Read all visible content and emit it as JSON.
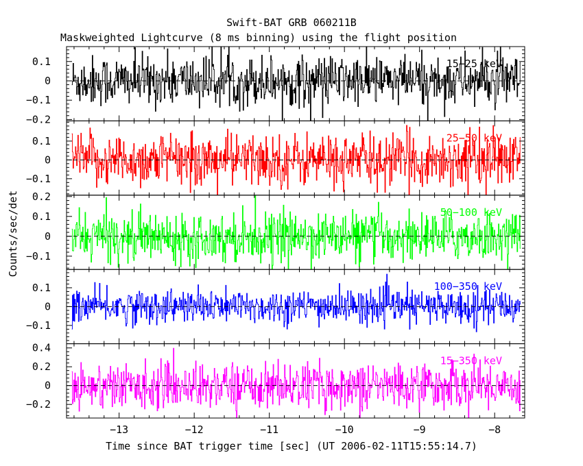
{
  "chart_data": {
    "type": "line",
    "title": "Swift-BAT GRB 060211B",
    "subtitle": "Maskweighted Lightcurve (8 ms binning) using the flight position",
    "xlabel": "Time since BAT trigger time [sec] (UT 2006-02-11T15:55:14.7)",
    "ylabel": "Counts/sec/det",
    "x_ticks": [
      -13,
      -12,
      -11,
      -10,
      -9,
      -8
    ],
    "x_tick_labels": [
      "−13",
      "−12",
      "−11",
      "−10",
      "−9",
      "−8"
    ],
    "x_range": [
      -13.7,
      -7.6
    ],
    "data_x_range": [
      -13.63,
      -7.65
    ],
    "bin_width": 0.008,
    "grid": false,
    "zero_line": "dashed",
    "panels": [
      {
        "name": "15-25 keV",
        "label": "15−25 keV",
        "color": "#000000",
        "ylim": [
          -0.2,
          0.17
        ],
        "yticks": [
          0.1,
          0,
          -0.1,
          -0.2
        ],
        "ytick_labels": [
          "0.1",
          "0",
          "−0.1",
          "−0.2"
        ],
        "noise_sigma": 0.065
      },
      {
        "name": "25-50 keV",
        "label": "25−50 keV",
        "color": "#ff0000",
        "ylim": [
          -0.18,
          0.2
        ],
        "yticks": [
          0.1,
          0,
          -0.1
        ],
        "ytick_labels": [
          "0.1",
          "0",
          "−0.1"
        ],
        "noise_sigma": 0.07
      },
      {
        "name": "50-100 keV",
        "label": "50−100 keV",
        "color": "#00ff00",
        "ylim": [
          -0.16,
          0.2
        ],
        "yticks": [
          0.2,
          0.1,
          0,
          -0.1
        ],
        "ytick_labels": [
          "0.2",
          "0.1",
          "0",
          "−0.1"
        ],
        "noise_sigma": 0.06
      },
      {
        "name": "100-350 keV",
        "label": "100−350 keV",
        "color": "#0000ff",
        "ylim": [
          -0.19,
          0.19
        ],
        "yticks": [
          0.1,
          0,
          -0.1
        ],
        "ytick_labels": [
          "0.1",
          "0",
          "−0.1"
        ],
        "noise_sigma": 0.045
      },
      {
        "name": "15-350 keV",
        "label": "15−350 keV",
        "color": "#ff00ff",
        "ylim": [
          -0.33,
          0.43
        ],
        "yticks": [
          0.4,
          0.2,
          0,
          -0.2
        ],
        "ytick_labels": [
          "0.4",
          "0.2",
          "0",
          "−0.2"
        ],
        "noise_sigma": 0.12
      }
    ]
  }
}
